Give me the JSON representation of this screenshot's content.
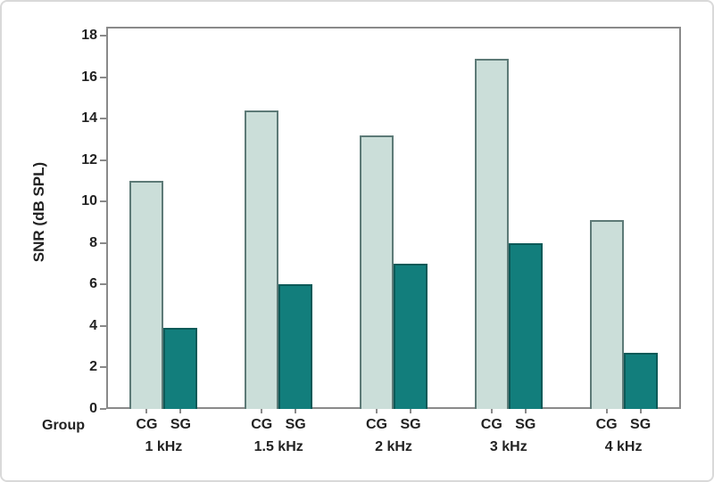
{
  "colors": {
    "background": "#ffffff",
    "figure_border": "#d9d9d9",
    "frame": "#8a8a8a",
    "text": "#222222",
    "cg_fill": "#cbded9",
    "cg_border": "#5d7a77",
    "sg_fill": "#127e7c",
    "sg_border": "#0c5a58"
  },
  "chart_data": {
    "type": "bar",
    "title": "",
    "ylabel": "SNR (dB SPL)",
    "xlabel": "",
    "corner_label": "Group",
    "categories": [
      "1 kHz",
      "1.5 kHz",
      "2 kHz",
      "3 kHz",
      "4 kHz"
    ],
    "series": [
      {
        "name": "CG",
        "values": [
          11.0,
          14.4,
          13.2,
          16.9,
          9.1
        ],
        "fill": "#cbded9",
        "border": "#5d7a77"
      },
      {
        "name": "SG",
        "values": [
          3.9,
          6.0,
          7.0,
          8.0,
          2.7
        ],
        "fill": "#127e7c",
        "border": "#0c5a58"
      }
    ],
    "ylim": [
      0,
      18
    ],
    "yticks": [
      0,
      2,
      4,
      6,
      8,
      10,
      12,
      14,
      16,
      18
    ],
    "grid": false,
    "legend_position": "none"
  }
}
